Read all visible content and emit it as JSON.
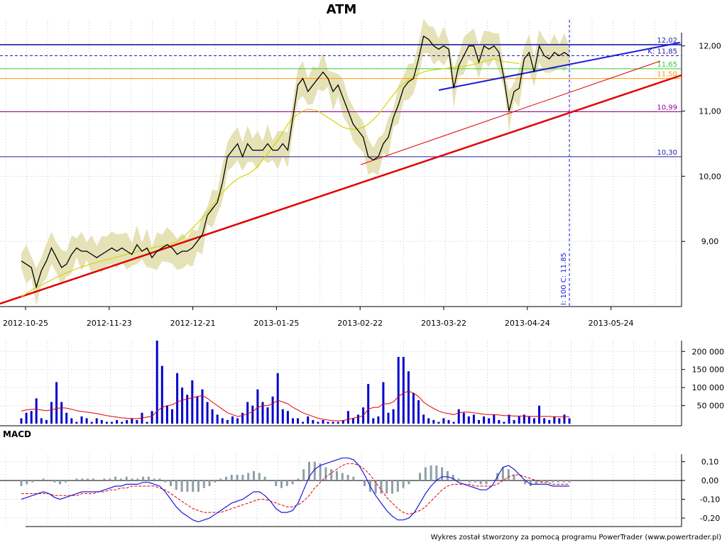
{
  "chart_data": [
    {
      "type": "line",
      "title": "ATM",
      "x_ticks": [
        "2012-10-25",
        "2012-11-23",
        "2012-12-21",
        "2013-01-25",
        "2013-02-22",
        "2013-03-22",
        "2013-04-24",
        "2013-05-24"
      ],
      "y_ticks": [
        "9,00",
        "10,00",
        "11,00",
        "12,00"
      ],
      "ylim": [
        8.0,
        12.4
      ],
      "grid": true,
      "close_series": [
        8.7,
        8.65,
        8.6,
        8.3,
        8.55,
        8.7,
        8.9,
        8.75,
        8.6,
        8.65,
        8.8,
        8.9,
        8.85,
        8.85,
        8.8,
        8.75,
        8.8,
        8.85,
        8.9,
        8.85,
        8.9,
        8.85,
        8.8,
        8.95,
        8.85,
        8.9,
        8.75,
        8.85,
        8.9,
        8.95,
        8.9,
        8.8,
        8.85,
        8.85,
        8.9,
        9.0,
        9.1,
        9.4,
        9.5,
        9.6,
        9.9,
        10.3,
        10.4,
        10.5,
        10.3,
        10.5,
        10.4,
        10.4,
        10.4,
        10.5,
        10.4,
        10.4,
        10.5,
        10.4,
        10.9,
        11.4,
        11.5,
        11.3,
        11.4,
        11.5,
        11.6,
        11.5,
        11.3,
        11.4,
        11.2,
        11.0,
        10.8,
        10.7,
        10.6,
        10.3,
        10.25,
        10.3,
        10.5,
        10.6,
        10.9,
        11.1,
        11.35,
        11.45,
        11.5,
        11.8,
        12.15,
        12.1,
        12.0,
        11.95,
        12.0,
        11.95,
        11.35,
        11.7,
        11.85,
        12.0,
        12.0,
        11.75,
        12.0,
        11.95,
        12.0,
        11.9,
        11.5,
        11.0,
        11.3,
        11.35,
        11.8,
        11.9,
        11.6,
        12.0,
        11.85,
        11.8,
        11.9,
        11.85,
        11.9,
        11.85
      ],
      "ma_series": [
        8.15,
        8.2,
        8.25,
        8.3,
        8.33,
        8.37,
        8.41,
        8.45,
        8.48,
        8.52,
        8.55,
        8.58,
        8.61,
        8.63,
        8.66,
        8.68,
        8.7,
        8.72,
        8.74,
        8.76,
        8.78,
        8.8,
        8.82,
        8.84,
        8.86,
        8.88,
        8.9,
        8.92,
        8.93,
        8.95,
        8.97,
        9.0,
        9.05,
        9.12,
        9.2,
        9.28,
        9.36,
        9.45,
        9.55,
        9.65,
        9.75,
        9.83,
        9.9,
        9.96,
        10.0,
        10.03,
        10.08,
        10.15,
        10.25,
        10.35,
        10.45,
        10.55,
        10.67,
        10.8,
        10.9,
        10.95,
        11.0,
        11.03,
        11.02,
        11.0,
        10.95,
        10.9,
        10.85,
        10.8,
        10.75,
        10.73,
        10.72,
        10.73,
        10.75,
        10.8,
        10.87,
        10.95,
        11.05,
        11.15,
        11.25,
        11.35,
        11.42,
        11.48,
        11.53,
        11.57,
        11.6,
        11.62,
        11.63,
        11.64,
        11.65,
        11.66,
        11.67,
        11.68,
        11.69,
        11.7,
        11.72,
        11.74,
        11.76,
        11.78,
        11.8,
        11.78,
        11.76,
        11.75,
        11.74,
        11.73
      ],
      "horizontal_levels": [
        {
          "label": "12,02",
          "value": 12.02,
          "color": "#1f1fa8"
        },
        {
          "label": "K: 11,85",
          "value": 11.85,
          "color": "#1f1fa8",
          "dashed": true
        },
        {
          "label": "11,65",
          "value": 11.65,
          "color": "#33cc33"
        },
        {
          "label": "11,50",
          "value": 11.5,
          "color": "#ff9900"
        },
        {
          "label": "10,99",
          "value": 10.99,
          "color": "#990099"
        },
        {
          "label": "10,30",
          "value": 10.3,
          "color": "#1f1fa8"
        }
      ],
      "cursor_label": "I: 100 C: 11.85",
      "colors": {
        "close": "#000000",
        "ma": "#d6d600",
        "band": "#e6e2b8",
        "trend_red": "#e00000",
        "trend_blue": "#1a1adc"
      }
    },
    {
      "type": "bar",
      "y_ticks": [
        "50 000",
        "100 000",
        "150 000",
        "200 000"
      ],
      "ylim": [
        0,
        230000
      ],
      "values": [
        15000,
        30000,
        35000,
        70000,
        15000,
        10000,
        60000,
        115000,
        60000,
        30000,
        15000,
        5000,
        20000,
        15000,
        5000,
        15000,
        10000,
        5000,
        5000,
        10000,
        5000,
        10000,
        15000,
        10000,
        30000,
        5000,
        35000,
        230000,
        160000,
        50000,
        40000,
        140000,
        100000,
        80000,
        120000,
        75000,
        95000,
        60000,
        40000,
        25000,
        15000,
        10000,
        20000,
        15000,
        30000,
        60000,
        50000,
        95000,
        60000,
        45000,
        75000,
        140000,
        40000,
        35000,
        15000,
        15000,
        5000,
        20000,
        10000,
        5000,
        10000,
        5000,
        5000,
        5000,
        10000,
        35000,
        15000,
        25000,
        45000,
        110000,
        15000,
        20000,
        115000,
        30000,
        40000,
        185000,
        185000,
        145000,
        85000,
        65000,
        25000,
        15000,
        10000,
        5000,
        15000,
        10000,
        5000,
        40000,
        30000,
        20000,
        25000,
        10000,
        20000,
        15000,
        25000,
        10000,
        5000,
        25000,
        10000,
        20000,
        25000,
        20000,
        15000,
        50000,
        15000,
        10000,
        20000,
        15000,
        25000,
        15000
      ],
      "avg_values": [
        35000,
        38000,
        40000,
        40000,
        38000,
        36000,
        38000,
        42000,
        44000,
        43000,
        40000,
        36000,
        34000,
        32000,
        30000,
        28000,
        25000,
        22000,
        20000,
        18000,
        16000,
        15000,
        14000,
        14000,
        16000,
        18000,
        20000,
        35000,
        45000,
        50000,
        52000,
        60000,
        65000,
        68000,
        72000,
        75000,
        78000,
        70000,
        60000,
        50000,
        40000,
        30000,
        25000,
        20000,
        22000,
        28000,
        33000,
        45000,
        50000,
        50000,
        55000,
        65000,
        60000,
        55000,
        45000,
        38000,
        30000,
        25000,
        20000,
        15000,
        12000,
        10000,
        8000,
        8000,
        8000,
        12000,
        15000,
        18000,
        22000,
        40000,
        45000,
        45000,
        55000,
        55000,
        60000,
        75000,
        85000,
        90000,
        85000,
        75000,
        60000,
        50000,
        42000,
        35000,
        30000,
        28000,
        25000,
        30000,
        32000,
        32000,
        30000,
        28000,
        26000,
        25000,
        25000,
        24000,
        22000,
        22000,
        21000,
        21000,
        21000,
        20000,
        20000,
        20000,
        20000,
        20000,
        19000,
        19000,
        19000,
        19000
      ],
      "colors": {
        "bar": "#0000cc",
        "avg": "#e00000"
      }
    },
    {
      "type": "line",
      "title": "MACD",
      "y_ticks": [
        "-0,20",
        "-0,10",
        "0,00",
        "0,10"
      ],
      "ylim": [
        -0.23,
        0.14
      ],
      "macd": [
        -0.1,
        -0.09,
        -0.08,
        -0.07,
        -0.06,
        -0.07,
        -0.09,
        -0.1,
        -0.09,
        -0.08,
        -0.07,
        -0.06,
        -0.06,
        -0.06,
        -0.06,
        -0.05,
        -0.04,
        -0.03,
        -0.03,
        -0.02,
        -0.02,
        -0.02,
        -0.01,
        -0.01,
        -0.02,
        -0.03,
        -0.06,
        -0.1,
        -0.14,
        -0.17,
        -0.19,
        -0.21,
        -0.22,
        -0.21,
        -0.2,
        -0.18,
        -0.16,
        -0.14,
        -0.12,
        -0.11,
        -0.1,
        -0.08,
        -0.06,
        -0.06,
        -0.08,
        -0.11,
        -0.15,
        -0.17,
        -0.17,
        -0.16,
        -0.12,
        -0.05,
        0.02,
        0.06,
        0.08,
        0.09,
        0.1,
        0.11,
        0.12,
        0.12,
        0.11,
        0.08,
        0.03,
        -0.03,
        -0.08,
        -0.12,
        -0.16,
        -0.19,
        -0.21,
        -0.21,
        -0.2,
        -0.17,
        -0.12,
        -0.07,
        -0.03,
        0.0,
        0.02,
        0.02,
        0.01,
        -0.01,
        -0.02,
        -0.03,
        -0.04,
        -0.05,
        -0.05,
        -0.03,
        0.02,
        0.07,
        0.08,
        0.06,
        0.03,
        0.0,
        -0.02,
        -0.02,
        -0.02,
        -0.02,
        -0.03,
        -0.03,
        -0.03,
        -0.03
      ],
      "signal": [
        -0.07,
        -0.07,
        -0.07,
        -0.07,
        -0.07,
        -0.07,
        -0.08,
        -0.08,
        -0.08,
        -0.08,
        -0.08,
        -0.07,
        -0.07,
        -0.07,
        -0.06,
        -0.06,
        -0.05,
        -0.05,
        -0.04,
        -0.04,
        -0.03,
        -0.03,
        -0.03,
        -0.03,
        -0.03,
        -0.04,
        -0.05,
        -0.07,
        -0.09,
        -0.11,
        -0.13,
        -0.15,
        -0.16,
        -0.17,
        -0.17,
        -0.17,
        -0.17,
        -0.16,
        -0.15,
        -0.14,
        -0.13,
        -0.12,
        -0.11,
        -0.1,
        -0.1,
        -0.11,
        -0.12,
        -0.13,
        -0.14,
        -0.14,
        -0.13,
        -0.11,
        -0.08,
        -0.04,
        -0.01,
        0.02,
        0.04,
        0.06,
        0.08,
        0.09,
        0.09,
        0.08,
        0.06,
        0.03,
        -0.01,
        -0.05,
        -0.09,
        -0.12,
        -0.15,
        -0.17,
        -0.18,
        -0.17,
        -0.16,
        -0.14,
        -0.11,
        -0.08,
        -0.05,
        -0.03,
        -0.02,
        -0.02,
        -0.02,
        -0.02,
        -0.03,
        -0.03,
        -0.03,
        -0.03,
        -0.02,
        0.0,
        0.02,
        0.03,
        0.03,
        0.02,
        0.01,
        0.0,
        -0.01,
        -0.01,
        -0.02,
        -0.02,
        -0.02,
        -0.02
      ],
      "colors": {
        "macd": "#1a1adc",
        "signal": "#e00000",
        "hist": "#8e9fa8"
      }
    }
  ],
  "footer": "Wykres został stworzony za pomocą programu PowerTrader (www.powertrader.pl)"
}
